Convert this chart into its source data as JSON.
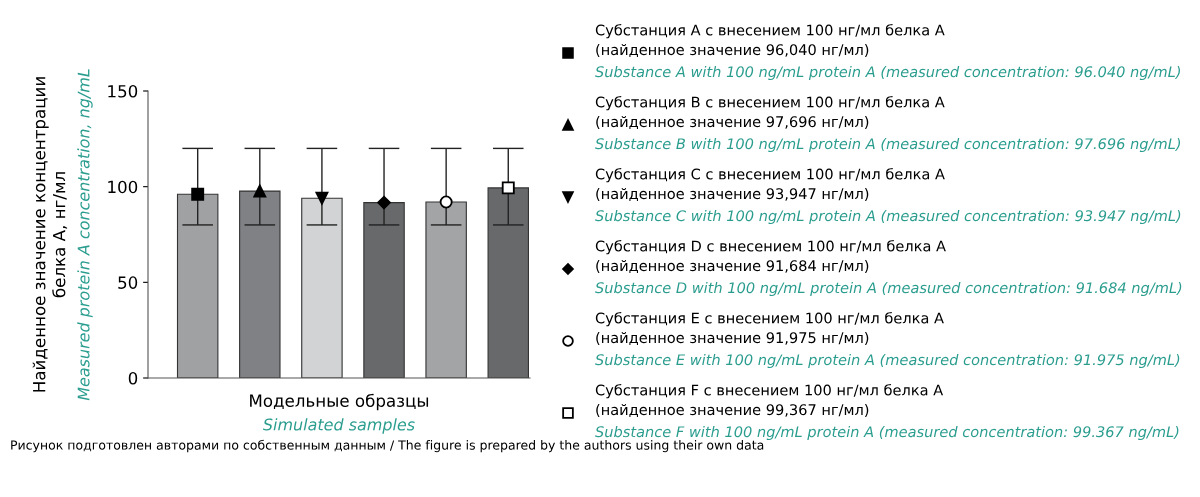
{
  "chart_data": {
    "type": "bar",
    "categories": [
      null,
      null,
      null,
      null,
      null,
      null
    ],
    "xlabel": "Модельные образцы\nSimulated samples",
    "ylabel": "Найденное значение концентрации\nбелка А, нг/мл\nMeasured protein A concentration, ng/mL",
    "ylim": [
      0,
      150
    ],
    "yticks": [
      0,
      50,
      100,
      150
    ],
    "legend": "right",
    "series": [
      {
        "colors": [
          "#a0a1a3",
          "#7f8184",
          "#d2d3d4",
          "#67696b",
          "#a3a4a6",
          "#67696b"
        ],
        "values": [
          96.04,
          97.696,
          93.947,
          91.684,
          91.975,
          99.367
        ],
        "errors": [
          [
            80,
            120
          ],
          [
            80,
            120
          ],
          [
            80,
            120
          ],
          [
            80,
            120
          ],
          [
            80,
            120
          ],
          [
            80,
            120
          ]
        ]
      },
      {
        "type": "scatter",
        "marker": "square",
        "color": "#000000",
        "name": "Субстанция A с внесением 100 нг/мл белка A\n(найденное значение 96,040 нг/мл)\nSubstance A with 100 ng/mL protein A (measured concentration: 96.040 ng/mL)",
        "values": [
          96.04,
          null,
          null,
          null,
          null,
          null
        ]
      },
      {
        "type": "scatter",
        "marker": "triangle",
        "color": "#000000",
        "name": "Субстанция B с внесением 100 нг/мл белка A\n(найденное значение 97,696 нг/мл)\nSubstance B with 100 ng/mL protein A (measured concentration: 97.696 ng/mL)",
        "values": [
          null,
          97.696,
          null,
          null,
          null,
          null
        ]
      },
      {
        "type": "scatter",
        "marker": "triangle_down",
        "color": "#000000",
        "name": "Субстанция C с внесением 100 нг/мл белка A\n(найденное значение 93,947 нг/мл)\nSubstance C with 100 ng/mL protein A (measured concentration: 93.947 ng/mL)",
        "values": [
          null,
          null,
          93.947,
          null,
          null,
          null
        ]
      },
      {
        "type": "scatter",
        "marker": "diamond",
        "color": "#000000",
        "name": "Субстанция D с внесением 100 нг/мл белка A\n(найденное значение 91,684 нг/мл)\nSubstance D with 100 ng/mL protein A (measured concentration: 91.684 ng/mL)",
        "values": [
          null,
          null,
          null,
          91.684,
          null,
          null
        ]
      },
      {
        "type": "scatter",
        "marker": "circle_open",
        "color": "#000000",
        "name": "Субстанция E с внесением 100 нг/мл белка A\n(найденное значение 91,975 нг/мл)\nSubstance E with 100 ng/mL protein A (measured concentration: 91.975 ng/mL)",
        "values": [
          null,
          null,
          null,
          null,
          91.975,
          null
        ]
      },
      {
        "type": "scatter",
        "marker": "square_open",
        "color": "#000000",
        "name": "Субстанция F с внесением 100 нг/мл белка A\n(найденное значение 99,367 нг/мл)\nSubstance F with 100 ng/mL protein A (measured concentration: 99.367 ng/mL)",
        "values": [
          null,
          null,
          null,
          null,
          null,
          99.367
        ]
      }
    ],
    "annotations": [
      "Рисунок подготовлен авторами по собственным данным / The figure is prepared by the authors using their own data"
    ]
  }
}
